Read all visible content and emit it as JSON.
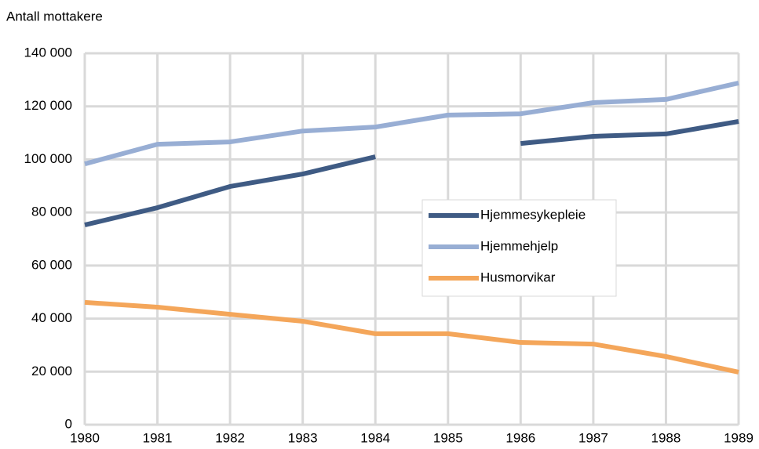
{
  "chart_data": {
    "type": "line",
    "y_axis_label": "Antall mottakere",
    "x": [
      1980,
      1981,
      1982,
      1983,
      1984,
      1985,
      1986,
      1987,
      1988,
      1989
    ],
    "xlim": [
      1980,
      1989
    ],
    "xticks": [
      1980,
      1981,
      1982,
      1983,
      1984,
      1985,
      1986,
      1987,
      1988,
      1989
    ],
    "ylim": [
      0,
      140000
    ],
    "yticks": [
      0,
      {
        "value": 20000,
        "label": "20 000"
      },
      {
        "value": 40000,
        "label": "40 000"
      },
      {
        "value": 60000,
        "label": "60 000"
      },
      {
        "value": 80000,
        "label": "80 000"
      },
      {
        "value": 100000,
        "label": "100 000"
      },
      {
        "value": 120000,
        "label": "120 000"
      },
      {
        "value": 140000,
        "label": "140 000"
      }
    ],
    "grid": true,
    "legend": "center-right",
    "series": [
      {
        "name": "Hjemmesykepleie",
        "color": "#3f5b84",
        "values": [
          75300,
          81800,
          89800,
          94500,
          101000,
          null,
          106000,
          108700,
          109600,
          114300
        ]
      },
      {
        "name": "Hjemmehjelp",
        "color": "#98aed4",
        "values": [
          98300,
          105700,
          106600,
          110700,
          112200,
          116700,
          117200,
          121400,
          122600,
          128800
        ]
      },
      {
        "name": "Husmorvikar",
        "color": "#f4a65a",
        "values": [
          46100,
          44300,
          41600,
          39000,
          34300,
          34300,
          31000,
          30400,
          25700,
          19800
        ]
      }
    ]
  }
}
